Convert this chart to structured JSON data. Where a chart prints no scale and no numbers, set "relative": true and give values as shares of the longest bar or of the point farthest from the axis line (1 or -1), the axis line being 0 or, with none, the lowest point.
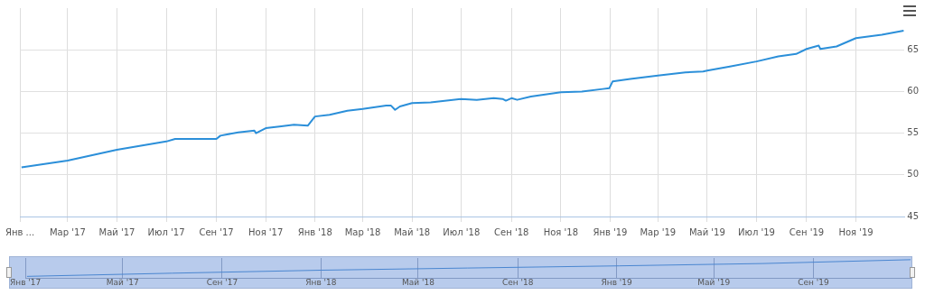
{
  "chart_data": [
    {
      "type": "line",
      "grid": true,
      "legend": false,
      "marker": "none",
      "line_style": "solid",
      "x": [
        "2017-01-03",
        "2017-03-01",
        "2017-05-01",
        "2017-07-01",
        "2017-07-12",
        "2017-09-01",
        "2017-09-06",
        "2017-09-28",
        "2017-10-18",
        "2017-10-20",
        "2017-11-01",
        "2017-11-18",
        "2017-12-06",
        "2017-12-23",
        "2017-12-28",
        "2018-01-01",
        "2018-01-19",
        "2018-02-10",
        "2018-03-01",
        "2018-03-30",
        "2018-04-05",
        "2018-04-10",
        "2018-04-16",
        "2018-05-01",
        "2018-05-24",
        "2018-07-01",
        "2018-07-20",
        "2018-08-10",
        "2018-08-21",
        "2018-08-25",
        "2018-09-01",
        "2018-09-08",
        "2018-09-25",
        "2018-11-01",
        "2018-11-27",
        "2018-12-23",
        "2018-12-31",
        "2019-01-04",
        "2019-01-26",
        "2019-03-01",
        "2019-04-04",
        "2019-04-26",
        "2019-05-01",
        "2019-05-29",
        "2019-07-01",
        "2019-07-28",
        "2019-08-19",
        "2019-09-01",
        "2019-09-16",
        "2019-09-18",
        "2019-10-08",
        "2019-11-01",
        "2019-12-03",
        "2019-12-30"
      ],
      "series": [
        {
          "color": "#2b8fd9",
          "values": [
            50.9,
            51.7,
            53.0,
            54.0,
            54.3,
            54.3,
            54.7,
            55.1,
            55.3,
            55.0,
            55.6,
            55.8,
            56.0,
            55.9,
            56.5,
            57.0,
            57.2,
            57.7,
            57.9,
            58.3,
            58.3,
            57.8,
            58.2,
            58.6,
            58.7,
            59.1,
            59.0,
            59.2,
            59.1,
            58.9,
            59.2,
            59.0,
            59.4,
            59.9,
            60.0,
            60.3,
            60.4,
            61.2,
            61.5,
            61.9,
            62.3,
            62.4,
            62.5,
            63.0,
            63.6,
            64.2,
            64.5,
            65.1,
            65.5,
            65.1,
            65.4,
            66.4,
            66.8,
            67.3
          ]
        }
      ],
      "xlim": [
        "2017-01-01",
        "2019-12-31"
      ],
      "xticks": [
        {
          "value": "2017-01-01",
          "label": "Янв ..."
        },
        {
          "value": "2017-03-01",
          "label": "Мар '17"
        },
        {
          "value": "2017-05-01",
          "label": "Май '17"
        },
        {
          "value": "2017-07-01",
          "label": "Июл '17"
        },
        {
          "value": "2017-09-01",
          "label": "Сен '17"
        },
        {
          "value": "2017-11-01",
          "label": "Ноя '17"
        },
        {
          "value": "2018-01-01",
          "label": "Янв '18"
        },
        {
          "value": "2018-03-01",
          "label": "Мар '18"
        },
        {
          "value": "2018-05-01",
          "label": "Май '18"
        },
        {
          "value": "2018-07-01",
          "label": "Июл '18"
        },
        {
          "value": "2018-09-01",
          "label": "Сен '18"
        },
        {
          "value": "2018-11-01",
          "label": "Ноя '18"
        },
        {
          "value": "2019-01-01",
          "label": "Янв '19"
        },
        {
          "value": "2019-03-01",
          "label": "Мар '19"
        },
        {
          "value": "2019-05-01",
          "label": "Май '19"
        },
        {
          "value": "2019-07-01",
          "label": "Июл '19"
        },
        {
          "value": "2019-09-01",
          "label": "Сен '19"
        },
        {
          "value": "2019-11-01",
          "label": "Ноя '19"
        }
      ],
      "ylim": [
        45,
        70
      ],
      "yticks": [
        45,
        50,
        55,
        60,
        65
      ]
    },
    {
      "type": "line",
      "grid": "x",
      "legend": false,
      "marker": "none",
      "tick_labels": "x",
      "x": [
        "2017-01-03",
        "2017-07-01",
        "2018-01-01",
        "2018-07-01",
        "2019-01-04",
        "2019-07-01",
        "2019-12-30"
      ],
      "series": [
        {
          "color": "#4a86d0",
          "values": [
            0,
            0.19,
            0.37,
            0.5,
            0.63,
            0.77,
            1
          ]
        }
      ],
      "relative": true,
      "xlim": [
        "2017-01-01",
        "2019-12-31"
      ],
      "xticks": [
        {
          "value": "2017-01-01",
          "label": "Янв '17"
        },
        {
          "value": "2017-05-01",
          "label": "Май '17"
        },
        {
          "value": "2017-09-01",
          "label": "Сен '17"
        },
        {
          "value": "2018-01-01",
          "label": "Янв '18"
        },
        {
          "value": "2018-05-01",
          "label": "Май '18"
        },
        {
          "value": "2018-09-01",
          "label": "Сен '18"
        },
        {
          "value": "2019-01-01",
          "label": "Янв '19"
        },
        {
          "value": "2019-05-01",
          "label": "Май '19"
        },
        {
          "value": "2019-09-01",
          "label": "Сен '19"
        }
      ]
    }
  ]
}
